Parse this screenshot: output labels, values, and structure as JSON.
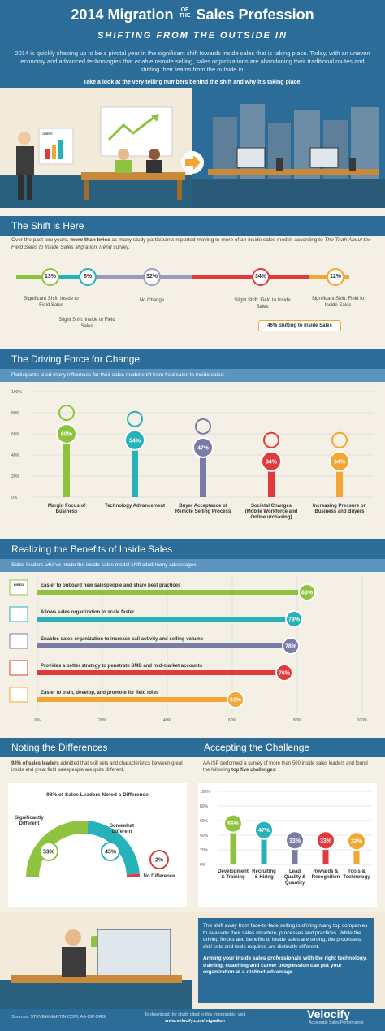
{
  "header": {
    "title_year_prefix": "2014 Migration",
    "title_of": "OF",
    "title_the": "THE",
    "title_suffix": "Sales Profession",
    "subtitle": "SHIFTING FROM THE OUTSIDE IN",
    "intro": "2014 is quickly shaping up to be a pivotal year in the significant shift towards inside sales that is taking place. Today, with an uneven economy and advanced technologies that enable remote selling, sales organizations are abandoning their traditional routes and shifting their teams from the outside in.",
    "intro_bold": "Take a look at the very telling numbers behind the shift and why it's taking place."
  },
  "scene": {
    "sales_board_label": "Sales"
  },
  "shift": {
    "title": "The Shift is Here",
    "desc_pre": "Over the past two years, ",
    "desc_bold": "more than twice",
    "desc_mid": " as many study participants reported moving to more of an inside sales model, according to ",
    "desc_italic": "The Truth About the Field Sales to Inside Sales Migration Trend",
    "desc_post": " survey.",
    "items": [
      {
        "value": "13%",
        "label": "Significant Shift: Inside to Field Sales",
        "color": "#8fc33f"
      },
      {
        "value": "8%",
        "label": "Slight Shift: Inside to Field Sales",
        "color": "#27b1b8"
      },
      {
        "value": "32%",
        "label": "No Change",
        "color": "#9b9bbd"
      },
      {
        "value": "34%",
        "label": "Slight Shift: Field to Inside Sales",
        "color": "#e03a3c"
      },
      {
        "value": "12%",
        "label": "Significant Shift: Field to Inside Sales",
        "color": "#f3a633"
      }
    ],
    "total_label": "46% Shifting to Inside Sales"
  },
  "driving": {
    "title": "The Driving Force for Change",
    "desc": "Participants cited many influences for their sales model shift from field sales to inside sales:"
  },
  "benefits": {
    "title": "Realizing the Benefits of Inside Sales",
    "desc": "Sales leaders who've made the inside sales model shift cited many advantages:",
    "hired_label": "HIRED"
  },
  "differences": {
    "title": "Noting the Differences",
    "desc_bold": "98% of sales leaders",
    "desc": " admitted that skill sets and characteristics between great inside and great field salespeople are quite different.",
    "gauge_title": "98% of Sales Leaders Noted a Difference"
  },
  "challenge": {
    "title": "Accepting the Challenge",
    "desc_pre": "AA-ISP performed a survey of more than 500 inside sales leaders and found the following ",
    "desc_bold": "top five challenges",
    "desc_post": ":"
  },
  "closing": {
    "para1": "The shift away from face-to-face selling is driving many top companies to evaluate their sales structure, processes and practices. While the driving forces and benefits of inside sales are strong, the processes, skill sets and tools required are distinctly different.",
    "para2": "Arming your inside sales professionals with the right technology, training, coaching and career progression can put your organization at a distinct advantage."
  },
  "footer": {
    "sources": "Sources: STEVEWMARTIN.COM, AA-ISP.ORG",
    "download": "To download the study cited in this infographic, visit",
    "url": "www.velocify.com/migration",
    "brand": "Velocify",
    "tagline": "Accelerate Sales Performance"
  },
  "chart_data": [
    {
      "type": "bar",
      "title": "The Driving Force for Change",
      "categories": [
        "Margin Focus of Business",
        "Technology Advancement",
        "Buyer Acceptance of Remote Selling Process",
        "Societal Changes (Mobile Workforce and Online urchasing)",
        "Increasing Pressure on Business and Buyers"
      ],
      "values": [
        60,
        54,
        47,
        34,
        34
      ],
      "value_labels": [
        "60%",
        "54%",
        "47%",
        "34%",
        "34%"
      ],
      "colors": [
        "#8fc33f",
        "#27b1b8",
        "#7b7ba8",
        "#e03a3c",
        "#f3a633"
      ],
      "yticks": [
        "100%",
        "80%",
        "60%",
        "40%",
        "20%",
        "0%"
      ],
      "ylim": [
        0,
        100
      ],
      "grid": true
    },
    {
      "type": "bar",
      "title": "Realizing the Benefits of Inside Sales",
      "orientation": "horizontal",
      "categories": [
        "Easier to onboard new salespeople and share best practices",
        "Allows sales organization to scale faster",
        "Enables sales organization to increase call activity and selling volume",
        "Provides a better strategy to penetrate SMB and mid-market accounts",
        "Easier to train, develop, and promote for field roles"
      ],
      "values": [
        83,
        79,
        78,
        76,
        61
      ],
      "value_labels": [
        "83%",
        "79%",
        "78%",
        "76%",
        "61%"
      ],
      "colors": [
        "#8fc33f",
        "#27b1b8",
        "#7b7ba8",
        "#e03a3c",
        "#f3a633"
      ],
      "xticks": [
        "0%",
        "20%",
        "40%",
        "60%",
        "80%",
        "100%"
      ],
      "xlim": [
        0,
        100
      ],
      "grid": true
    },
    {
      "type": "pie",
      "title": "98% of Sales Leaders Noted a Difference",
      "categories": [
        "Significantly Different",
        "Somewhat Different",
        "No Difference"
      ],
      "values": [
        53,
        45,
        2
      ],
      "value_labels": [
        "53%",
        "45%",
        "2%"
      ],
      "colors": [
        "#8fc33f",
        "#27b1b8",
        "#e03a3c"
      ]
    },
    {
      "type": "bar",
      "title": "Accepting the Challenge",
      "categories": [
        "Development & Training",
        "Recruiting & Hiring",
        "Lead Quality & Quantity",
        "Rewards & Recognition",
        "Tools & Technology"
      ],
      "values": [
        56,
        47,
        33,
        33,
        32
      ],
      "value_labels": [
        "56%",
        "47%",
        "33%",
        "33%",
        "32%"
      ],
      "colors": [
        "#8fc33f",
        "#27b1b8",
        "#7b7ba8",
        "#e03a3c",
        "#f3a633"
      ],
      "yticks": [
        "100%",
        "80%",
        "60%",
        "40%",
        "20%",
        "0%"
      ],
      "ylim": [
        0,
        100
      ],
      "grid": true
    }
  ]
}
